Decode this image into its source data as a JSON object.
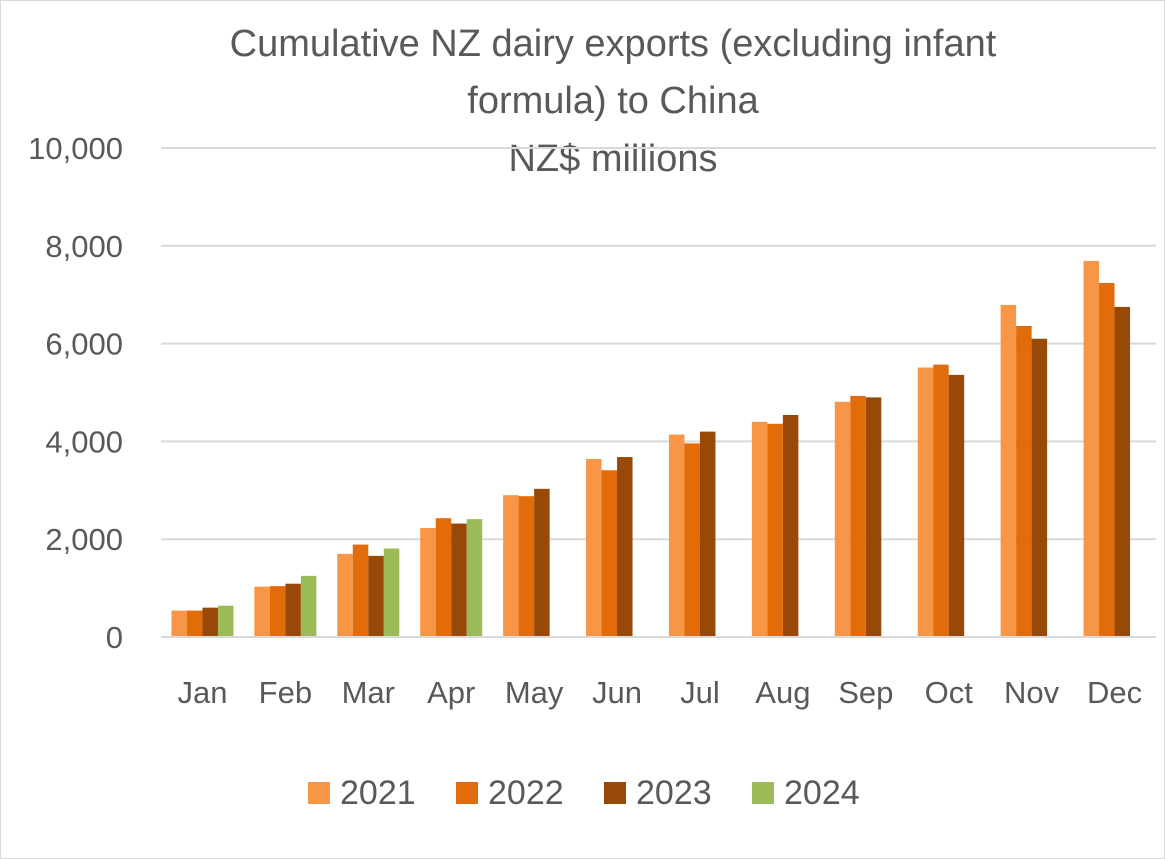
{
  "chart_data": {
    "type": "bar",
    "title_lines": [
      "Cumulative NZ dairy exports (excluding infant",
      "formula) to China",
      "NZ$ millions"
    ],
    "xlabel": "",
    "ylabel": "",
    "categories": [
      "Jan",
      "Feb",
      "Mar",
      "Apr",
      "May",
      "Jun",
      "Jul",
      "Aug",
      "Sep",
      "Oct",
      "Nov",
      "Dec"
    ],
    "ylim": [
      0,
      10000
    ],
    "yticks": [
      0,
      2000,
      4000,
      6000,
      8000,
      10000
    ],
    "ytick_labels": [
      "0",
      "2,000",
      "4,000",
      "6,000",
      "8,000",
      "10,000"
    ],
    "grid": true,
    "legend_position": "bottom",
    "series": [
      {
        "name": "2021",
        "color": "#F79646",
        "values": [
          540,
          1030,
          1700,
          2230,
          2900,
          3640,
          4140,
          4400,
          4810,
          5510,
          6790,
          7690
        ]
      },
      {
        "name": "2022",
        "color": "#E36C0A",
        "values": [
          540,
          1040,
          1890,
          2430,
          2880,
          3410,
          3960,
          4360,
          4930,
          5570,
          6360,
          7240
        ]
      },
      {
        "name": "2023",
        "color": "#984807",
        "values": [
          600,
          1090,
          1660,
          2320,
          3030,
          3680,
          4200,
          4540,
          4900,
          5360,
          6100,
          6750
        ]
      },
      {
        "name": "2024",
        "color": "#9BBB59",
        "values": [
          640,
          1250,
          1810,
          2410,
          null,
          null,
          null,
          null,
          null,
          null,
          null,
          null
        ]
      }
    ]
  }
}
